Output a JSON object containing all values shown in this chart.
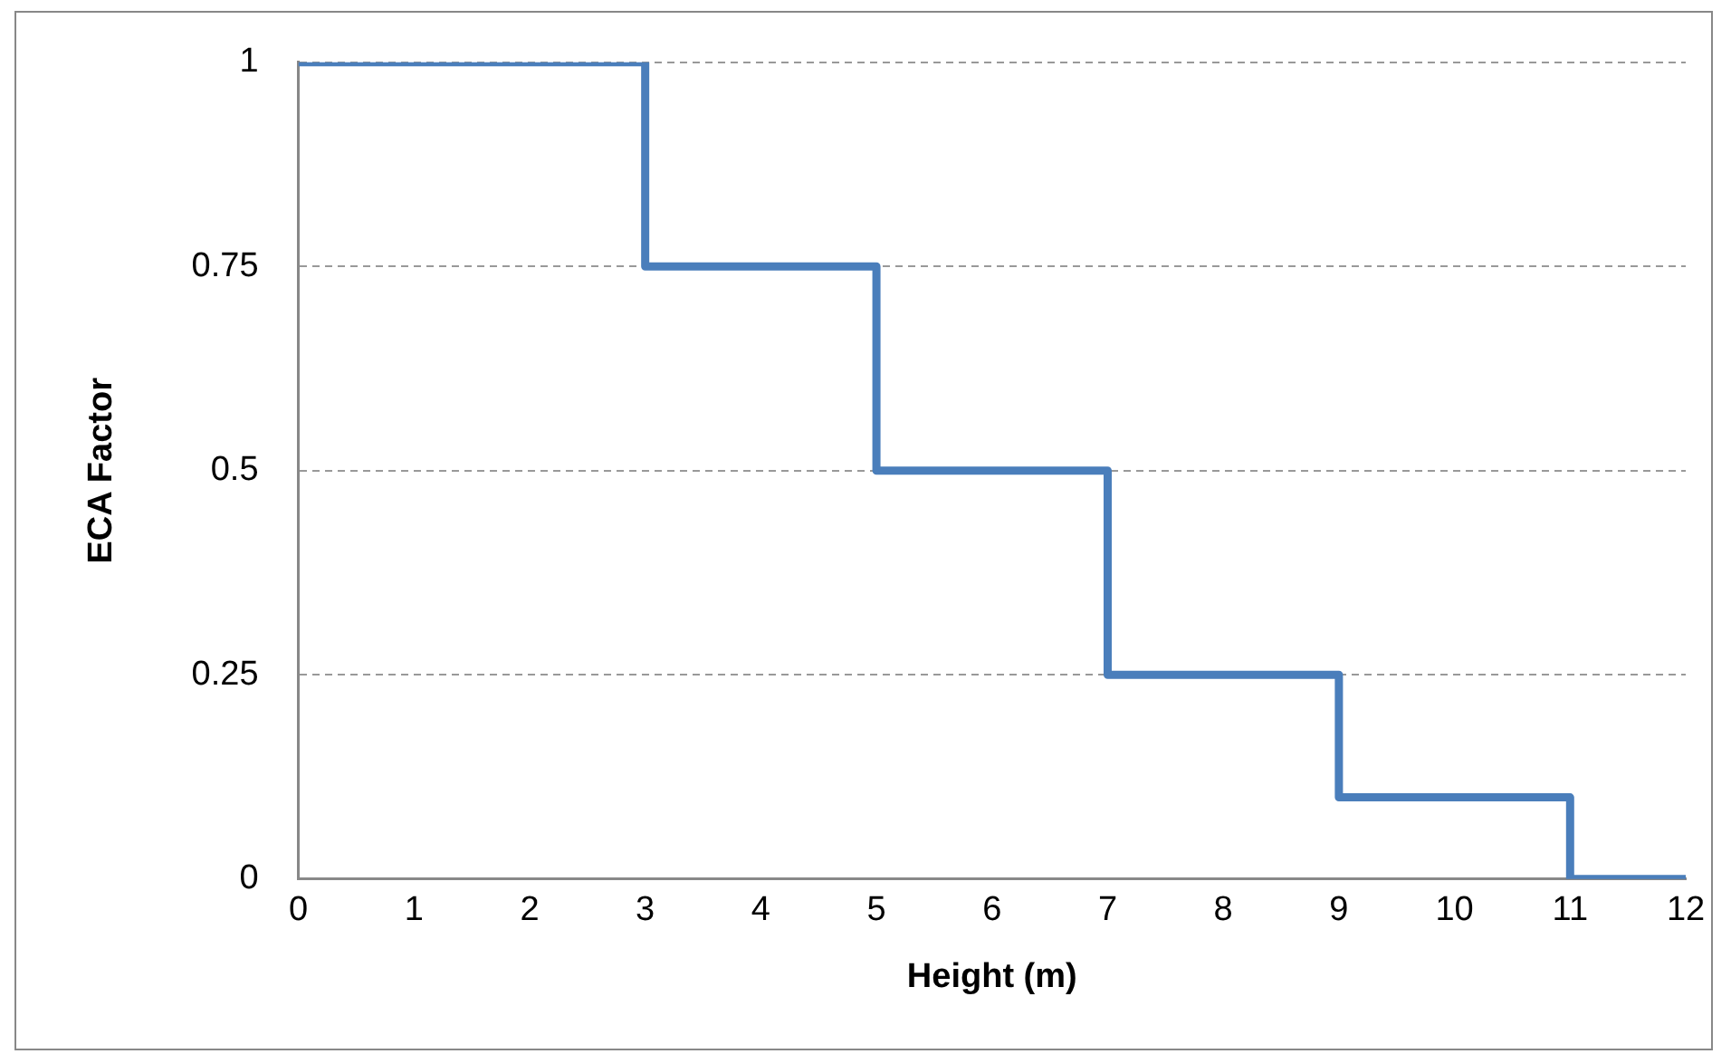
{
  "chart_data": {
    "type": "step",
    "xlabel": "Height (m)",
    "ylabel": "ECA Factor",
    "x": [
      0,
      3,
      5,
      7,
      9,
      11,
      12
    ],
    "series": [
      {
        "color": "#4a7ebb",
        "values": [
          1,
          0.75,
          0.5,
          0.25,
          0.1,
          0,
          0
        ]
      }
    ],
    "xlim": [
      0,
      12
    ],
    "xticks": [
      0,
      1,
      2,
      3,
      4,
      5,
      6,
      7,
      8,
      9,
      10,
      11,
      12
    ],
    "ylim": [
      0,
      1
    ],
    "yticks": [
      0,
      0.25,
      0.5,
      0.75,
      1
    ],
    "grid": "y",
    "legend": false,
    "marker": "none",
    "line_style": "solid"
  }
}
